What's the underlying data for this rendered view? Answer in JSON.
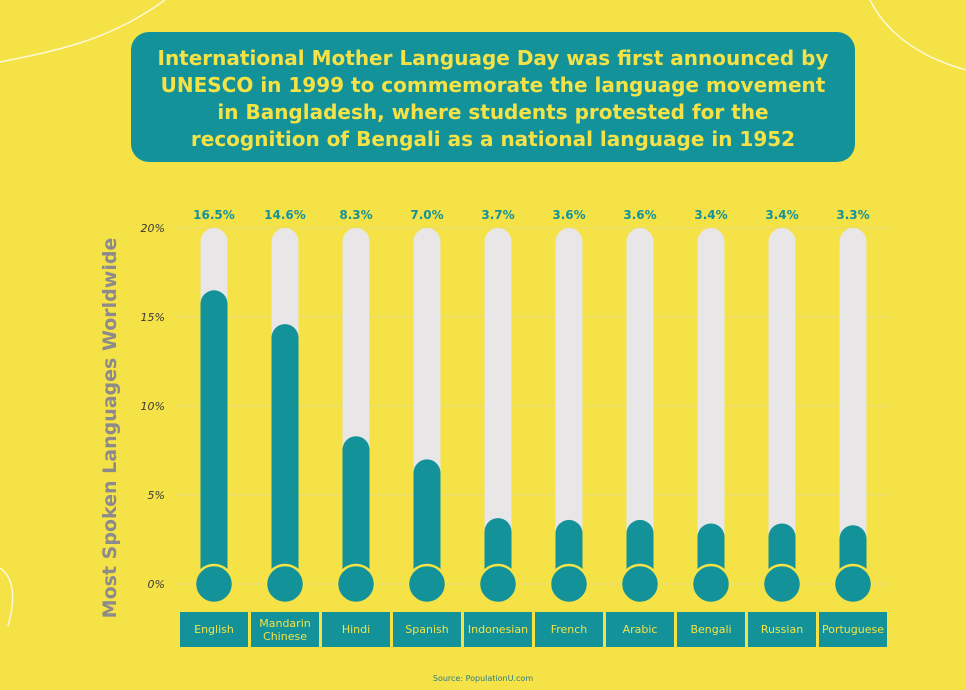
{
  "headline": "International Mother Language Day was first announced by UNESCO in 1999 to commemorate the language movement in Bangladesh, where students protested for the recognition of Bengali as a national language in 1952",
  "source": "Source: PopulationU.com",
  "colors": {
    "background": "#f4e246",
    "teal": "#14929a",
    "track": "#e8e6e6",
    "axis_title": "#8c8a8a"
  },
  "chart_data": {
    "type": "bar",
    "title": "",
    "xlabel": "",
    "ylabel": "Most Spoken Languages Worldwide",
    "ylim": [
      0,
      20
    ],
    "y_ticks": [
      "0%",
      "5%",
      "10%",
      "15%",
      "20%"
    ],
    "grid": true,
    "categories": [
      [
        "English"
      ],
      [
        "Mandarin",
        "Chinese"
      ],
      [
        "Hindi"
      ],
      [
        "Spanish"
      ],
      [
        "Indonesian"
      ],
      [
        "French"
      ],
      [
        "Arabic"
      ],
      [
        "Bengali"
      ],
      [
        "Russian"
      ],
      [
        "Portuguese"
      ]
    ],
    "values": [
      16.5,
      14.6,
      8.3,
      7.0,
      3.7,
      3.6,
      3.6,
      3.4,
      3.4,
      3.3
    ],
    "value_labels": [
      "16.5%",
      "14.6%",
      "8.3%",
      "7.0%",
      "3.7%",
      "3.6%",
      "3.6%",
      "3.4%",
      "3.4%",
      "3.3%"
    ]
  }
}
